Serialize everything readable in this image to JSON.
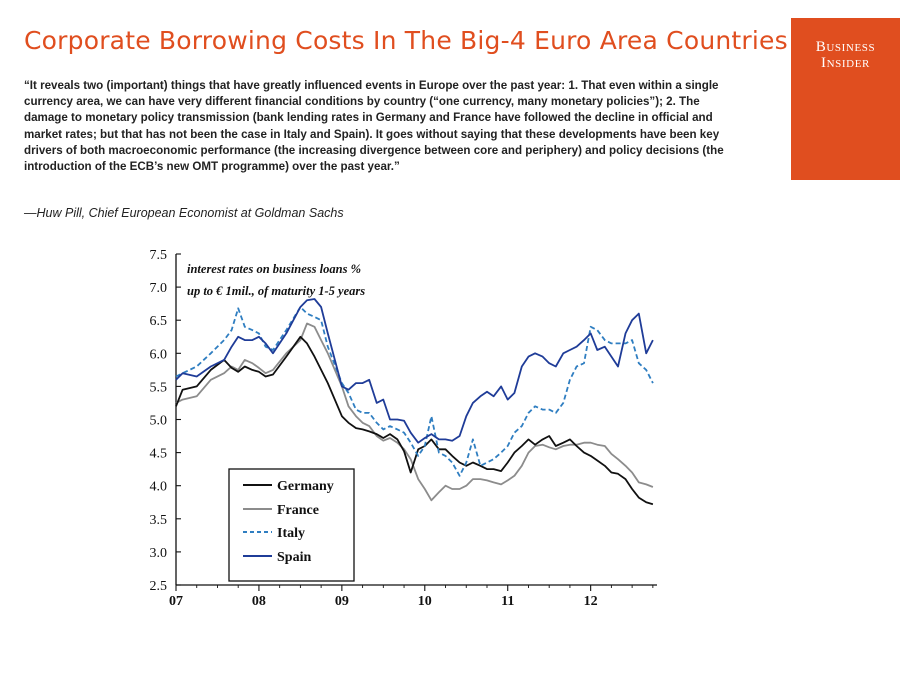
{
  "title": "Corporate Borrowing Costs In The Big-4 Euro Area Countries",
  "logo": {
    "line1": "Business",
    "line2": "Insider"
  },
  "quote": "“It reveals two (important) things that have greatly influenced events in Europe over the past year: 1. That even within a single currency area, we can have very different financial conditions by country (“one currency, many monetary policies”); 2. The damage to monetary policy transmission (bank lending rates in Germany and France have followed the decline in official and market rates; but that has not been the case in Italy and Spain). It goes without saying that these developments have been key drivers of both macroeconomic performance (the increasing divergence between core and periphery) and policy decisions (the introduction of the ECB’s new OMT programme) over the past year.”",
  "attribution": "—Huw Pill, Chief European Economist at Goldman Sachs",
  "colors": {
    "accent": "#e04e1f",
    "germany": "#111111",
    "france": "#8c8c8c",
    "italy": "#2f7ec1",
    "spain": "#1f3c98"
  },
  "chart_data": {
    "type": "line",
    "annotation": [
      "interest rates on business loans %",
      "up to € 1mil., of  maturity 1-5 years"
    ],
    "xlim": [
      2007.0,
      2012.8
    ],
    "ylim": [
      2.5,
      7.5
    ],
    "ytick_labels": [
      "2.5",
      "3.0",
      "3.5",
      "4.0",
      "4.5",
      "5.0",
      "5.5",
      "6.0",
      "6.5",
      "7.0",
      "7.5"
    ],
    "xtick_labels": [
      "07",
      "08",
      "09",
      "10",
      "11",
      "12"
    ],
    "grid": false,
    "legend_position": "bottom-left",
    "series": [
      {
        "name": "Germany",
        "color": "#111111",
        "dash": "solid",
        "x": [
          2007.0,
          2007.08,
          2007.25,
          2007.42,
          2007.58,
          2007.67,
          2007.75,
          2007.83,
          2007.92,
          2008.0,
          2008.08,
          2008.17,
          2008.33,
          2008.5,
          2008.58,
          2008.67,
          2008.83,
          2009.0,
          2009.08,
          2009.17,
          2009.25,
          2009.33,
          2009.42,
          2009.5,
          2009.58,
          2009.67,
          2009.75,
          2009.83,
          2009.92,
          2010.0,
          2010.08,
          2010.17,
          2010.25,
          2010.33,
          2010.42,
          2010.5,
          2010.58,
          2010.67,
          2010.75,
          2010.83,
          2010.92,
          2011.0,
          2011.08,
          2011.17,
          2011.25,
          2011.33,
          2011.42,
          2011.5,
          2011.58,
          2011.67,
          2011.75,
          2011.83,
          2011.92,
          2012.0,
          2012.08,
          2012.17,
          2012.25,
          2012.33,
          2012.42,
          2012.5,
          2012.58,
          2012.67,
          2012.75
        ],
        "y": [
          5.2,
          5.45,
          5.5,
          5.75,
          5.9,
          5.78,
          5.72,
          5.8,
          5.75,
          5.72,
          5.65,
          5.68,
          5.95,
          6.25,
          6.15,
          5.95,
          5.55,
          5.05,
          4.95,
          4.87,
          4.85,
          4.82,
          4.78,
          4.72,
          4.78,
          4.7,
          4.52,
          4.2,
          4.55,
          4.6,
          4.7,
          4.55,
          4.55,
          4.45,
          4.35,
          4.3,
          4.35,
          4.3,
          4.25,
          4.25,
          4.22,
          4.35,
          4.5,
          4.6,
          4.7,
          4.62,
          4.7,
          4.75,
          4.6,
          4.65,
          4.7,
          4.6,
          4.5,
          4.45,
          4.38,
          4.3,
          4.2,
          4.18,
          4.1,
          3.95,
          3.82,
          3.75,
          3.72
        ]
      },
      {
        "name": "France",
        "color": "#8c8c8c",
        "dash": "solid",
        "x": [
          2007.0,
          2007.08,
          2007.25,
          2007.42,
          2007.58,
          2007.67,
          2007.75,
          2007.83,
          2007.92,
          2008.0,
          2008.08,
          2008.17,
          2008.33,
          2008.5,
          2008.58,
          2008.67,
          2008.75,
          2008.83,
          2009.0,
          2009.08,
          2009.17,
          2009.25,
          2009.33,
          2009.42,
          2009.5,
          2009.58,
          2009.67,
          2009.75,
          2009.83,
          2009.92,
          2010.0,
          2010.08,
          2010.17,
          2010.25,
          2010.33,
          2010.42,
          2010.5,
          2010.58,
          2010.67,
          2010.75,
          2010.83,
          2010.92,
          2011.0,
          2011.08,
          2011.17,
          2011.25,
          2011.33,
          2011.42,
          2011.5,
          2011.58,
          2011.67,
          2011.75,
          2011.83,
          2011.92,
          2012.0,
          2012.08,
          2012.17,
          2012.25,
          2012.33,
          2012.42,
          2012.5,
          2012.58,
          2012.67,
          2012.75
        ],
        "y": [
          5.25,
          5.3,
          5.35,
          5.6,
          5.7,
          5.8,
          5.75,
          5.9,
          5.85,
          5.78,
          5.7,
          5.75,
          6.0,
          6.2,
          6.45,
          6.4,
          6.2,
          6.0,
          5.5,
          5.2,
          5.05,
          4.95,
          4.9,
          4.75,
          4.68,
          4.72,
          4.65,
          4.55,
          4.4,
          4.1,
          3.95,
          3.78,
          3.9,
          4.0,
          3.95,
          3.95,
          4.0,
          4.1,
          4.1,
          4.08,
          4.05,
          4.02,
          4.08,
          4.15,
          4.3,
          4.5,
          4.6,
          4.62,
          4.58,
          4.55,
          4.6,
          4.62,
          4.62,
          4.65,
          4.65,
          4.62,
          4.6,
          4.48,
          4.4,
          4.3,
          4.2,
          4.05,
          4.02,
          3.98
        ]
      },
      {
        "name": "Italy",
        "color": "#2f7ec1",
        "dash": "dashed",
        "x": [
          2007.0,
          2007.08,
          2007.25,
          2007.42,
          2007.58,
          2007.67,
          2007.75,
          2007.83,
          2007.92,
          2008.0,
          2008.08,
          2008.17,
          2008.33,
          2008.5,
          2008.58,
          2008.67,
          2008.75,
          2008.83,
          2009.0,
          2009.08,
          2009.17,
          2009.25,
          2009.33,
          2009.42,
          2009.5,
          2009.58,
          2009.67,
          2009.75,
          2009.83,
          2009.92,
          2010.0,
          2010.08,
          2010.17,
          2010.25,
          2010.33,
          2010.42,
          2010.5,
          2010.58,
          2010.67,
          2010.75,
          2010.83,
          2010.92,
          2011.0,
          2011.08,
          2011.17,
          2011.25,
          2011.33,
          2011.42,
          2011.5,
          2011.58,
          2011.67,
          2011.75,
          2011.83,
          2011.92,
          2012.0,
          2012.08,
          2012.17,
          2012.25,
          2012.33,
          2012.42,
          2012.5,
          2012.58,
          2012.67,
          2012.75
        ],
        "y": [
          5.65,
          5.7,
          5.8,
          6.0,
          6.2,
          6.35,
          6.68,
          6.4,
          6.35,
          6.3,
          6.1,
          6.05,
          6.35,
          6.7,
          6.6,
          6.55,
          6.5,
          6.1,
          5.55,
          5.4,
          5.15,
          5.1,
          5.1,
          4.95,
          4.85,
          4.9,
          4.85,
          4.8,
          4.65,
          4.45,
          4.6,
          5.05,
          4.5,
          4.45,
          4.35,
          4.15,
          4.35,
          4.7,
          4.3,
          4.35,
          4.4,
          4.5,
          4.6,
          4.8,
          4.9,
          5.1,
          5.2,
          5.15,
          5.15,
          5.1,
          5.25,
          5.6,
          5.8,
          5.85,
          6.4,
          6.35,
          6.2,
          6.15,
          6.15,
          6.15,
          6.2,
          5.85,
          5.75,
          5.55
        ]
      },
      {
        "name": "Spain",
        "color": "#1f3c98",
        "dash": "solid",
        "x": [
          2007.0,
          2007.08,
          2007.25,
          2007.42,
          2007.58,
          2007.67,
          2007.75,
          2007.83,
          2007.92,
          2008.0,
          2008.08,
          2008.17,
          2008.33,
          2008.5,
          2008.58,
          2008.67,
          2008.75,
          2008.83,
          2009.0,
          2009.08,
          2009.17,
          2009.25,
          2009.33,
          2009.42,
          2009.5,
          2009.58,
          2009.67,
          2009.75,
          2009.83,
          2009.92,
          2010.0,
          2010.08,
          2010.17,
          2010.25,
          2010.33,
          2010.42,
          2010.5,
          2010.58,
          2010.67,
          2010.75,
          2010.83,
          2010.92,
          2011.0,
          2011.08,
          2011.17,
          2011.25,
          2011.33,
          2011.42,
          2011.5,
          2011.58,
          2011.67,
          2011.75,
          2011.83,
          2011.92,
          2012.0,
          2012.08,
          2012.17,
          2012.25,
          2012.33,
          2012.42,
          2012.5,
          2012.58,
          2012.67,
          2012.75
        ],
        "y": [
          5.6,
          5.7,
          5.65,
          5.8,
          5.9,
          6.1,
          6.25,
          6.2,
          6.2,
          6.25,
          6.15,
          6.0,
          6.3,
          6.7,
          6.8,
          6.82,
          6.7,
          6.3,
          5.5,
          5.45,
          5.55,
          5.55,
          5.6,
          5.25,
          5.3,
          5.0,
          5.0,
          4.98,
          4.8,
          4.65,
          4.72,
          4.78,
          4.7,
          4.7,
          4.68,
          4.75,
          5.05,
          5.25,
          5.35,
          5.42,
          5.35,
          5.5,
          5.3,
          5.4,
          5.8,
          5.95,
          6.0,
          5.95,
          5.85,
          5.8,
          6.0,
          6.05,
          6.1,
          6.2,
          6.3,
          6.05,
          6.1,
          5.95,
          5.8,
          6.3,
          6.5,
          6.6,
          6.0,
          6.2
        ]
      }
    ]
  }
}
